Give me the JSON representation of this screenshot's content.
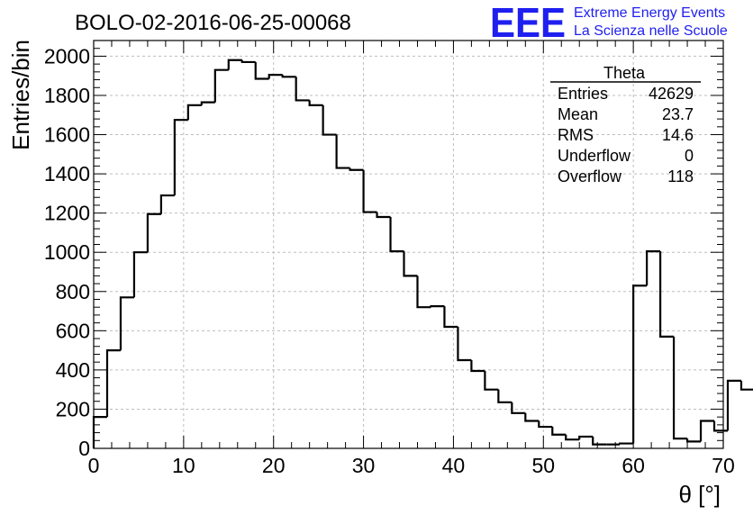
{
  "header": {
    "run_title": "BOLO-02-2016-06-25-00068"
  },
  "logo": {
    "letters": "EEE",
    "line1": "Extreme Energy Events",
    "line2": "La Scienza nelle Scuole",
    "color": "#1f1ff0"
  },
  "stats": {
    "title": "Theta",
    "rows": [
      {
        "label": "Entries",
        "value": "42629"
      },
      {
        "label": "Mean",
        "value": "23.7"
      },
      {
        "label": "RMS",
        "value": "14.6"
      },
      {
        "label": "Underflow",
        "value": "0"
      },
      {
        "label": "Overflow",
        "value": "118"
      }
    ]
  },
  "chart_data": {
    "type": "histogram",
    "xlabel": "θ [°]",
    "ylabel": "Entries/bin",
    "xlim": [
      0,
      70
    ],
    "ylim": [
      0,
      2080
    ],
    "grid": true,
    "x_ticks": [
      0,
      10,
      20,
      30,
      40,
      50,
      60,
      70
    ],
    "y_ticks": [
      0,
      200,
      400,
      600,
      800,
      1000,
      1200,
      1400,
      1600,
      1800,
      2000
    ],
    "bin_width": 1.5,
    "bin_edges_start": 0,
    "values": [
      160,
      500,
      770,
      1000,
      1195,
      1290,
      1675,
      1750,
      1765,
      1930,
      1980,
      1970,
      1885,
      1905,
      1895,
      1775,
      1750,
      1600,
      1430,
      1420,
      1205,
      1180,
      1005,
      880,
      720,
      725,
      620,
      450,
      395,
      300,
      235,
      180,
      140,
      110,
      70,
      45,
      60,
      20,
      20,
      25,
      830,
      1005,
      570,
      50,
      35,
      140,
      90,
      345,
      300
    ],
    "line_color": "#000000"
  }
}
